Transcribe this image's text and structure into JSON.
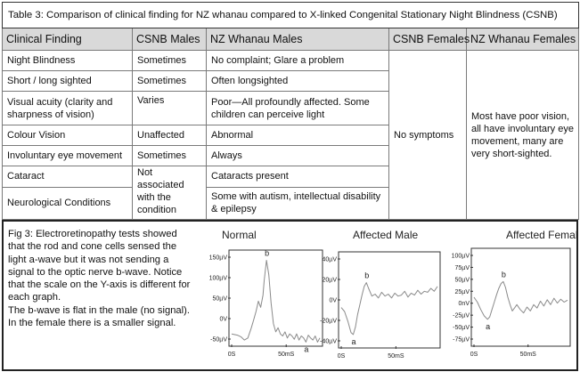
{
  "table": {
    "caption": "Table 3:   Comparison of clinical finding for NZ whanau compared to X-linked Congenital Stationary Night Blindness (CSNB)",
    "headers": [
      "Clinical Finding",
      "CSNB Males",
      "NZ Whanau  Males",
      "CSNB Females",
      "NZ Whanau Females"
    ],
    "rows": [
      {
        "finding": "Night Blindness",
        "csnb_males": "Sometimes",
        "nz_males": "No complaint; Glare a problem"
      },
      {
        "finding": "Short / long sighted",
        "csnb_males": "Sometimes",
        "nz_males": "Often longsighted"
      },
      {
        "finding": "Visual acuity (clarity and sharpness of vision)",
        "csnb_males": "Varies",
        "nz_males": "Poor—All profoundly affected. Some children can perceive light"
      },
      {
        "finding": "Colour Vision",
        "csnb_males": "Unaffected",
        "nz_males": "Abnormal"
      },
      {
        "finding": "Involuntary eye movement",
        "csnb_males": "Sometimes",
        "nz_males": "Always"
      },
      {
        "finding": "Cataract",
        "csnb_males": "",
        "nz_males": "Cataracts present"
      },
      {
        "finding": "Neurological Conditions",
        "csnb_males": "",
        "nz_males": "Some with autism, intellectual disability & epilepsy"
      }
    ],
    "csnb_males_merged": "Not associated with the condition",
    "csnb_females": "No symptoms",
    "nz_females": "Most have poor vision, all have involuntary eye movement, many are very short-sighted."
  },
  "figure": {
    "caption_p1": "Fig 3:  Electroretinopathy tests showed that the rod and cone cells sensed the light a-wave but it was not sending a signal to the optic nerve b-wave.  Notice that the scale on the Y-axis is different for each graph.",
    "caption_p2": "The b-wave is flat in the male (no signal).  In the female there is a smaller signal.",
    "panel_titles": [
      "Normal",
      "Affected Male",
      "Affected Female"
    ]
  },
  "chart_data": [
    {
      "type": "line",
      "title": "Normal",
      "x_unit": "mS",
      "x_tick_labels": [
        "0S",
        "50mS"
      ],
      "y_tick_labels": [
        "150µV",
        "100µV",
        "50µV",
        "0V",
        "-50µV"
      ],
      "ylim": [
        -65,
        170
      ],
      "peak_labels": [
        "a",
        "b"
      ],
      "series": [
        {
          "x": [
            0,
            5,
            8,
            11,
            14,
            17,
            19,
            21,
            23,
            25,
            27,
            28,
            30,
            32,
            34,
            36,
            38,
            40,
            42,
            44,
            46,
            48,
            50,
            52,
            54,
            56,
            58,
            60,
            62,
            64,
            66,
            68,
            70,
            72,
            74,
            76
          ],
          "y": [
            -35,
            -38,
            -42,
            -50,
            -45,
            -20,
            0,
            20,
            45,
            30,
            60,
            95,
            145,
            110,
            40,
            -10,
            -30,
            -20,
            -35,
            -40,
            -30,
            -45,
            -35,
            -40,
            -48,
            -35,
            -50,
            -40,
            -45,
            -55,
            -38,
            -45,
            -50,
            -40,
            -55,
            -45
          ]
        }
      ]
    },
    {
      "type": "line",
      "title": "Affected Male",
      "x_unit": "mS",
      "x_tick_labels": [
        "0S",
        "50mS"
      ],
      "y_tick_labels": [
        "40µV",
        "20µV",
        "0V",
        "-20µV",
        "-40µV"
      ],
      "ylim": [
        -50,
        50
      ],
      "peak_labels": [
        "a",
        "b"
      ],
      "series": [
        {
          "x": [
            0,
            3,
            6,
            9,
            11,
            13,
            15,
            17,
            19,
            21,
            23,
            25,
            28,
            31,
            34,
            37,
            40,
            43,
            46,
            49,
            52,
            55,
            58,
            61,
            64,
            67,
            70,
            73,
            76,
            79,
            82,
            85,
            88
          ],
          "y": [
            -8,
            -12,
            -22,
            -34,
            -36,
            -28,
            -15,
            -5,
            5,
            14,
            18,
            12,
            4,
            6,
            2,
            8,
            4,
            6,
            2,
            7,
            4,
            5,
            9,
            3,
            7,
            5,
            10,
            6,
            9,
            8,
            12,
            9,
            14
          ]
        }
      ]
    },
    {
      "type": "line",
      "title": "Affected Female",
      "x_unit": "mS",
      "x_tick_labels": [
        "0S",
        "50mS"
      ],
      "y_tick_labels": [
        "100µV",
        "75µV",
        "50µV",
        "25µV",
        "0nV",
        "-25µV",
        "-50µV",
        "-75µV"
      ],
      "ylim": [
        -90,
        110
      ],
      "peak_labels": [
        "a",
        "b"
      ],
      "series": [
        {
          "x": [
            0,
            3,
            6,
            9,
            12,
            14,
            16,
            18,
            20,
            22,
            24,
            26,
            28,
            30,
            32,
            34,
            36,
            38,
            41,
            44,
            47,
            50,
            53,
            56,
            59,
            62,
            65,
            68,
            71,
            74,
            77,
            80,
            83
          ],
          "y": [
            10,
            0,
            -15,
            -28,
            -35,
            -30,
            -15,
            0,
            15,
            28,
            38,
            42,
            30,
            10,
            -5,
            -18,
            -12,
            -5,
            -15,
            -22,
            -10,
            -18,
            -5,
            -12,
            2,
            -8,
            5,
            -5,
            8,
            -2,
            6,
            0,
            4
          ]
        }
      ]
    }
  ]
}
